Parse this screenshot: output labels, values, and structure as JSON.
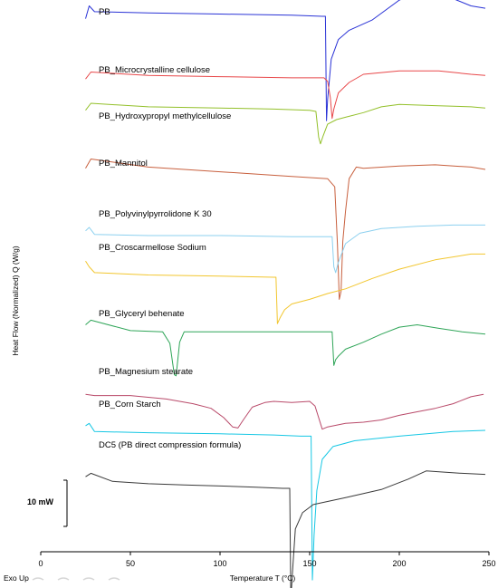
{
  "chart_data": {
    "type": "line",
    "title": "",
    "xlabel": "Temperature T (°C)",
    "ylabel": "Heat Flow (Normalized) Q (W/g)",
    "xlim": [
      0,
      250
    ],
    "xticks": [
      0,
      50,
      100,
      150,
      200,
      250
    ],
    "orientation_label": "Exo Up",
    "scale_bar_label": "10 mW",
    "scale_bar_mW": 10,
    "grid": false,
    "legend": "inline labels",
    "series": [
      {
        "name": "PB",
        "color": "#2a33d6",
        "x": [
          25,
          27,
          30,
          60,
          100,
          140,
          157,
          158.8,
          159.4,
          160,
          162,
          166,
          172,
          185,
          200,
          212,
          222,
          232,
          240,
          248
        ],
        "y": [
          13.0,
          14.1,
          13.6,
          13.5,
          13.4,
          13.3,
          13.2,
          13.2,
          4.2,
          6.0,
          9.5,
          11.2,
          12.0,
          12.9,
          14.6,
          15.3,
          15.2,
          14.6,
          14.1,
          13.9
        ]
      },
      {
        "name": "PB_Microcrystalline cellulose",
        "color": "#e8484a",
        "x": [
          25,
          28,
          60,
          100,
          140,
          158,
          160,
          161.5,
          162.5,
          163.5,
          166,
          172,
          180,
          200,
          222,
          240,
          248
        ],
        "y": [
          7.8,
          8.4,
          8.1,
          8.0,
          7.9,
          7.9,
          7.6,
          6.2,
          4.4,
          5.2,
          6.6,
          7.5,
          8.2,
          8.5,
          8.5,
          8.2,
          8.1
        ]
      },
      {
        "name": "PB_Hydroxypropyl methylcellulose",
        "color": "#93c02a",
        "x": [
          25,
          28,
          60,
          100,
          130,
          150,
          153.5,
          155,
          156,
          157.5,
          160,
          165,
          170,
          180,
          190,
          200,
          220,
          240,
          248
        ],
        "y": [
          5.1,
          5.7,
          5.4,
          5.3,
          5.2,
          5.1,
          5.0,
          2.8,
          2.2,
          2.9,
          3.9,
          4.3,
          4.5,
          4.9,
          5.4,
          5.6,
          5.5,
          5.4,
          5.3
        ]
      },
      {
        "name": "PB_Mannitol",
        "color": "#c8603e",
        "x": [
          25,
          28,
          60,
          100,
          140,
          160,
          164,
          165.5,
          166.5,
          167.5,
          168.5,
          170,
          172,
          176,
          180,
          200,
          220,
          240,
          248
        ],
        "y": [
          0.1,
          0.9,
          0.2,
          -0.2,
          -0.6,
          -0.8,
          -1.5,
          -6.5,
          -11.2,
          -10.5,
          -6.2,
          -3.6,
          -0.8,
          0.2,
          0.1,
          0.3,
          0.4,
          0.2,
          0.0
        ]
      },
      {
        "name": "PB_Polyvinylpyrrolidone K 30",
        "color": "#8cd0ef",
        "x": [
          25,
          27,
          30,
          60,
          100,
          140,
          160,
          162.5,
          163.5,
          164.5,
          166,
          170,
          178,
          190,
          210,
          230,
          248
        ],
        "y": [
          -5.3,
          -5.0,
          -5.6,
          -5.7,
          -5.7,
          -5.8,
          -5.8,
          -5.8,
          -8.4,
          -8.9,
          -8.0,
          -6.4,
          -5.5,
          -5.1,
          -4.9,
          -4.8,
          -4.8
        ]
      },
      {
        "name": "PB_Croscarmellose Sodium",
        "color": "#f2c62e",
        "x": [
          25,
          27,
          30,
          60,
          100,
          130,
          131.2,
          132,
          133.5,
          136,
          140,
          150,
          160,
          170,
          185,
          200,
          220,
          240,
          248
        ],
        "y": [
          -7.9,
          -8.4,
          -8.9,
          -9.1,
          -9.2,
          -9.3,
          -9.3,
          -13.3,
          -12.8,
          -12.1,
          -11.6,
          -11.2,
          -10.7,
          -10.3,
          -9.4,
          -8.6,
          -7.8,
          -7.3,
          -7.3
        ]
      },
      {
        "name": "PB_Glyceryl behenate",
        "color": "#2fa558",
        "x": [
          25,
          28,
          50,
          68,
          72,
          74.5,
          75.5,
          77.5,
          80,
          100,
          140,
          162.5,
          163.5,
          164.5,
          166,
          170,
          180,
          190,
          200,
          210,
          222,
          235,
          248
        ],
        "y": [
          -13.4,
          -13.0,
          -13.9,
          -14.0,
          -15.0,
          -17.7,
          -17.8,
          -14.9,
          -14.0,
          -14.0,
          -14.0,
          -14.0,
          -16.9,
          -16.4,
          -16.1,
          -15.5,
          -14.9,
          -14.2,
          -13.6,
          -13.4,
          -13.7,
          -14.0,
          -14.2
        ]
      },
      {
        "name": "PB_Magnesium stearate",
        "color": "#b94a6a",
        "x": [
          25,
          30,
          50,
          70,
          85,
          95,
          102,
          107,
          110,
          113,
          118,
          125,
          130,
          140,
          150,
          153,
          157,
          160,
          170,
          180,
          190,
          200,
          210,
          220,
          230,
          240,
          247
        ],
        "y": [
          -19.4,
          -19.5,
          -19.5,
          -19.8,
          -20.2,
          -20.6,
          -21.4,
          -22.2,
          -22.3,
          -21.6,
          -20.5,
          -20.1,
          -20.0,
          -20.1,
          -20.0,
          -20.4,
          -22.4,
          -22.2,
          -21.9,
          -21.8,
          -21.6,
          -21.2,
          -20.9,
          -20.6,
          -20.2,
          -19.6,
          -19.4
        ]
      },
      {
        "name": "PB_Corn Starch",
        "color": "#16c7e4",
        "x": [
          25,
          27,
          30,
          60,
          100,
          130,
          145,
          150,
          150.8,
          151.5,
          152.5,
          154,
          157,
          163,
          175,
          200,
          230,
          248
        ],
        "y": [
          -22.1,
          -21.9,
          -22.6,
          -22.7,
          -22.8,
          -22.9,
          -23.0,
          -23.0,
          -23.0,
          -35.4,
          -31.5,
          -27.7,
          -25.0,
          -23.9,
          -23.4,
          -23.0,
          -22.6,
          -22.5
        ]
      },
      {
        "name": "DC5 (PB direct compression formula)",
        "color": "#3a3a3a",
        "x": [
          25,
          28,
          40,
          60,
          80,
          100,
          120,
          135,
          138,
          138.9,
          139.5,
          140.5,
          142,
          146,
          152,
          170,
          190,
          205,
          215,
          225,
          235,
          248
        ],
        "y": [
          -26.5,
          -26.2,
          -26.9,
          -27.1,
          -27.2,
          -27.3,
          -27.4,
          -27.5,
          -27.5,
          -27.5,
          -37.1,
          -34.5,
          -31.0,
          -29.6,
          -28.9,
          -28.3,
          -27.6,
          -26.7,
          -26.0,
          -26.1,
          -26.2,
          -26.3
        ]
      }
    ]
  },
  "labels": {
    "PB": "PB",
    "mcc": "PB_Microcrystalline cellulose",
    "hpmc": "PB_Hydroxypropyl methylcellulose",
    "mannitol": "PB_Mannitol",
    "pvp": "PB_Polyvinylpyrrolidone K 30",
    "croscarmellose": "PB_Croscarmellose Sodium",
    "glyceryl": "PB_Glyceryl behenate",
    "magnesium": "PB_Magnesium stearate",
    "corn": "PB_Corn Starch",
    "dc5": "DC5 (PB direct compression formula)"
  }
}
